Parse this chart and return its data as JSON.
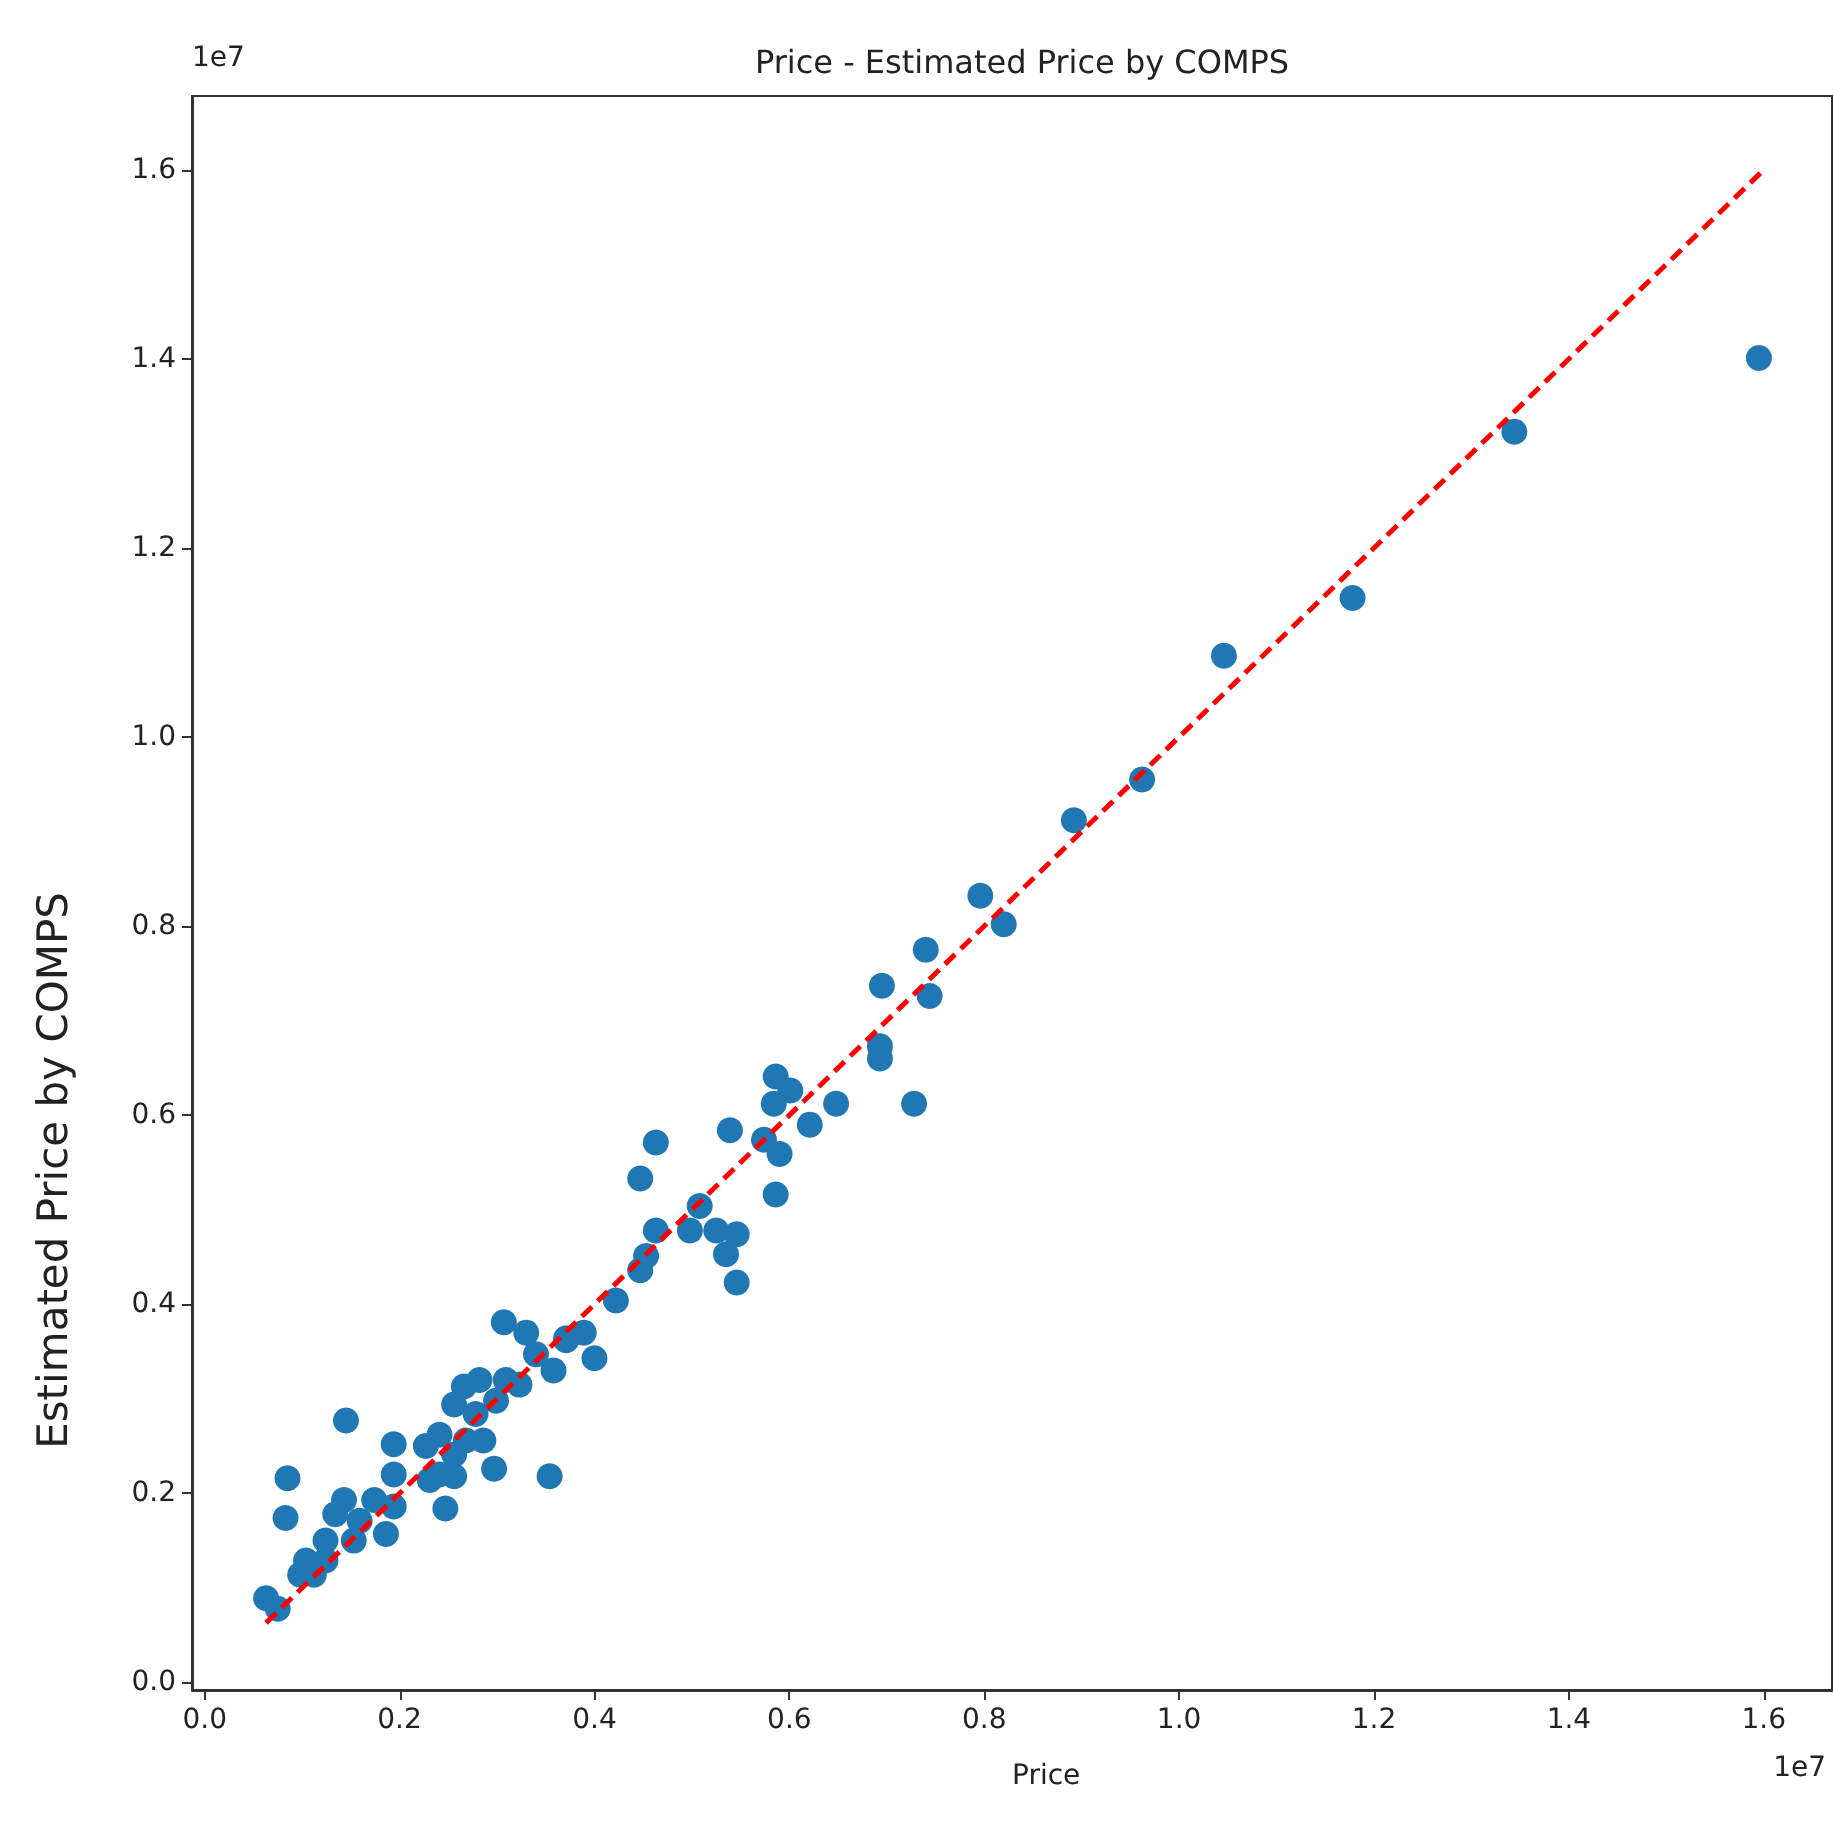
{
  "chart_data": {
    "type": "scatter",
    "title": "Price - Estimated Price by COMPS",
    "xlabel": "Price",
    "ylabel": "Estimated Price by COMPS",
    "annotations": [
      "1e7",
      "1e7"
    ],
    "xlim": [
      -0.013,
      1.67
    ],
    "ylim": [
      -0.008,
      1.678
    ],
    "xticks": [
      {
        "value": 0,
        "label": "0.0"
      },
      0.2,
      0.4,
      0.6,
      0.8,
      {
        "value": 1,
        "label": "1.0"
      },
      1.2,
      1.4,
      1.6
    ],
    "yticks": [
      {
        "value": 0,
        "label": "0.0"
      },
      0.2,
      0.4,
      0.6,
      0.8,
      {
        "value": 1,
        "label": "1.0"
      },
      1.2,
      1.4,
      1.6
    ],
    "grid": false,
    "marker": "circle",
    "series": [
      {
        "type": "scatter",
        "color": "#1f77b4",
        "x": [
          1.595,
          1.344,
          1.178,
          1.046,
          0.962,
          0.892,
          0.82,
          0.796,
          0.74,
          0.744,
          0.695,
          0.693,
          0.693,
          0.586,
          0.601,
          0.584,
          0.648,
          0.728,
          0.621,
          0.539,
          0.463,
          0.574,
          0.59,
          0.447,
          0.586,
          0.508,
          0.463,
          0.498,
          0.525,
          0.546,
          0.535,
          0.453,
          0.447,
          0.546,
          0.422,
          0.389,
          0.371,
          0.4,
          0.307,
          0.33,
          0.371,
          0.34,
          0.358,
          0.266,
          0.282,
          0.309,
          0.323,
          0.299,
          0.256,
          0.145,
          0.278,
          0.241,
          0.268,
          0.286,
          0.227,
          0.194,
          0.256,
          0.241,
          0.194,
          0.297,
          0.354,
          0.085,
          0.256,
          0.231,
          0.143,
          0.174,
          0.194,
          0.247,
          0.134,
          0.159,
          0.083,
          0.186,
          0.124,
          0.153,
          0.104,
          0.124,
          0.098,
          0.112,
          0.063,
          0.075
        ],
        "values": [
          1.401,
          1.323,
          1.147,
          1.086,
          0.955,
          0.912,
          0.802,
          0.832,
          0.775,
          0.726,
          0.737,
          0.673,
          0.66,
          0.641,
          0.626,
          0.612,
          0.612,
          0.612,
          0.59,
          0.584,
          0.571,
          0.574,
          0.559,
          0.533,
          0.516,
          0.504,
          0.478,
          0.478,
          0.478,
          0.474,
          0.453,
          0.451,
          0.436,
          0.423,
          0.404,
          0.37,
          0.362,
          0.343,
          0.381,
          0.37,
          0.364,
          0.347,
          0.33,
          0.313,
          0.32,
          0.32,
          0.315,
          0.298,
          0.294,
          0.277,
          0.284,
          0.262,
          0.256,
          0.256,
          0.25,
          0.252,
          0.241,
          0.22,
          0.22,
          0.226,
          0.218,
          0.216,
          0.218,
          0.214,
          0.193,
          0.193,
          0.186,
          0.184,
          0.178,
          0.171,
          0.174,
          0.157,
          0.15,
          0.15,
          0.129,
          0.129,
          0.114,
          0.114,
          0.089,
          0.078
        ]
      },
      {
        "type": "line",
        "color": "#ff0000",
        "line_style": "dashed",
        "marker": "none",
        "x": [
          0.063,
          1.6
        ],
        "values": [
          0.063,
          1.6
        ]
      }
    ]
  }
}
